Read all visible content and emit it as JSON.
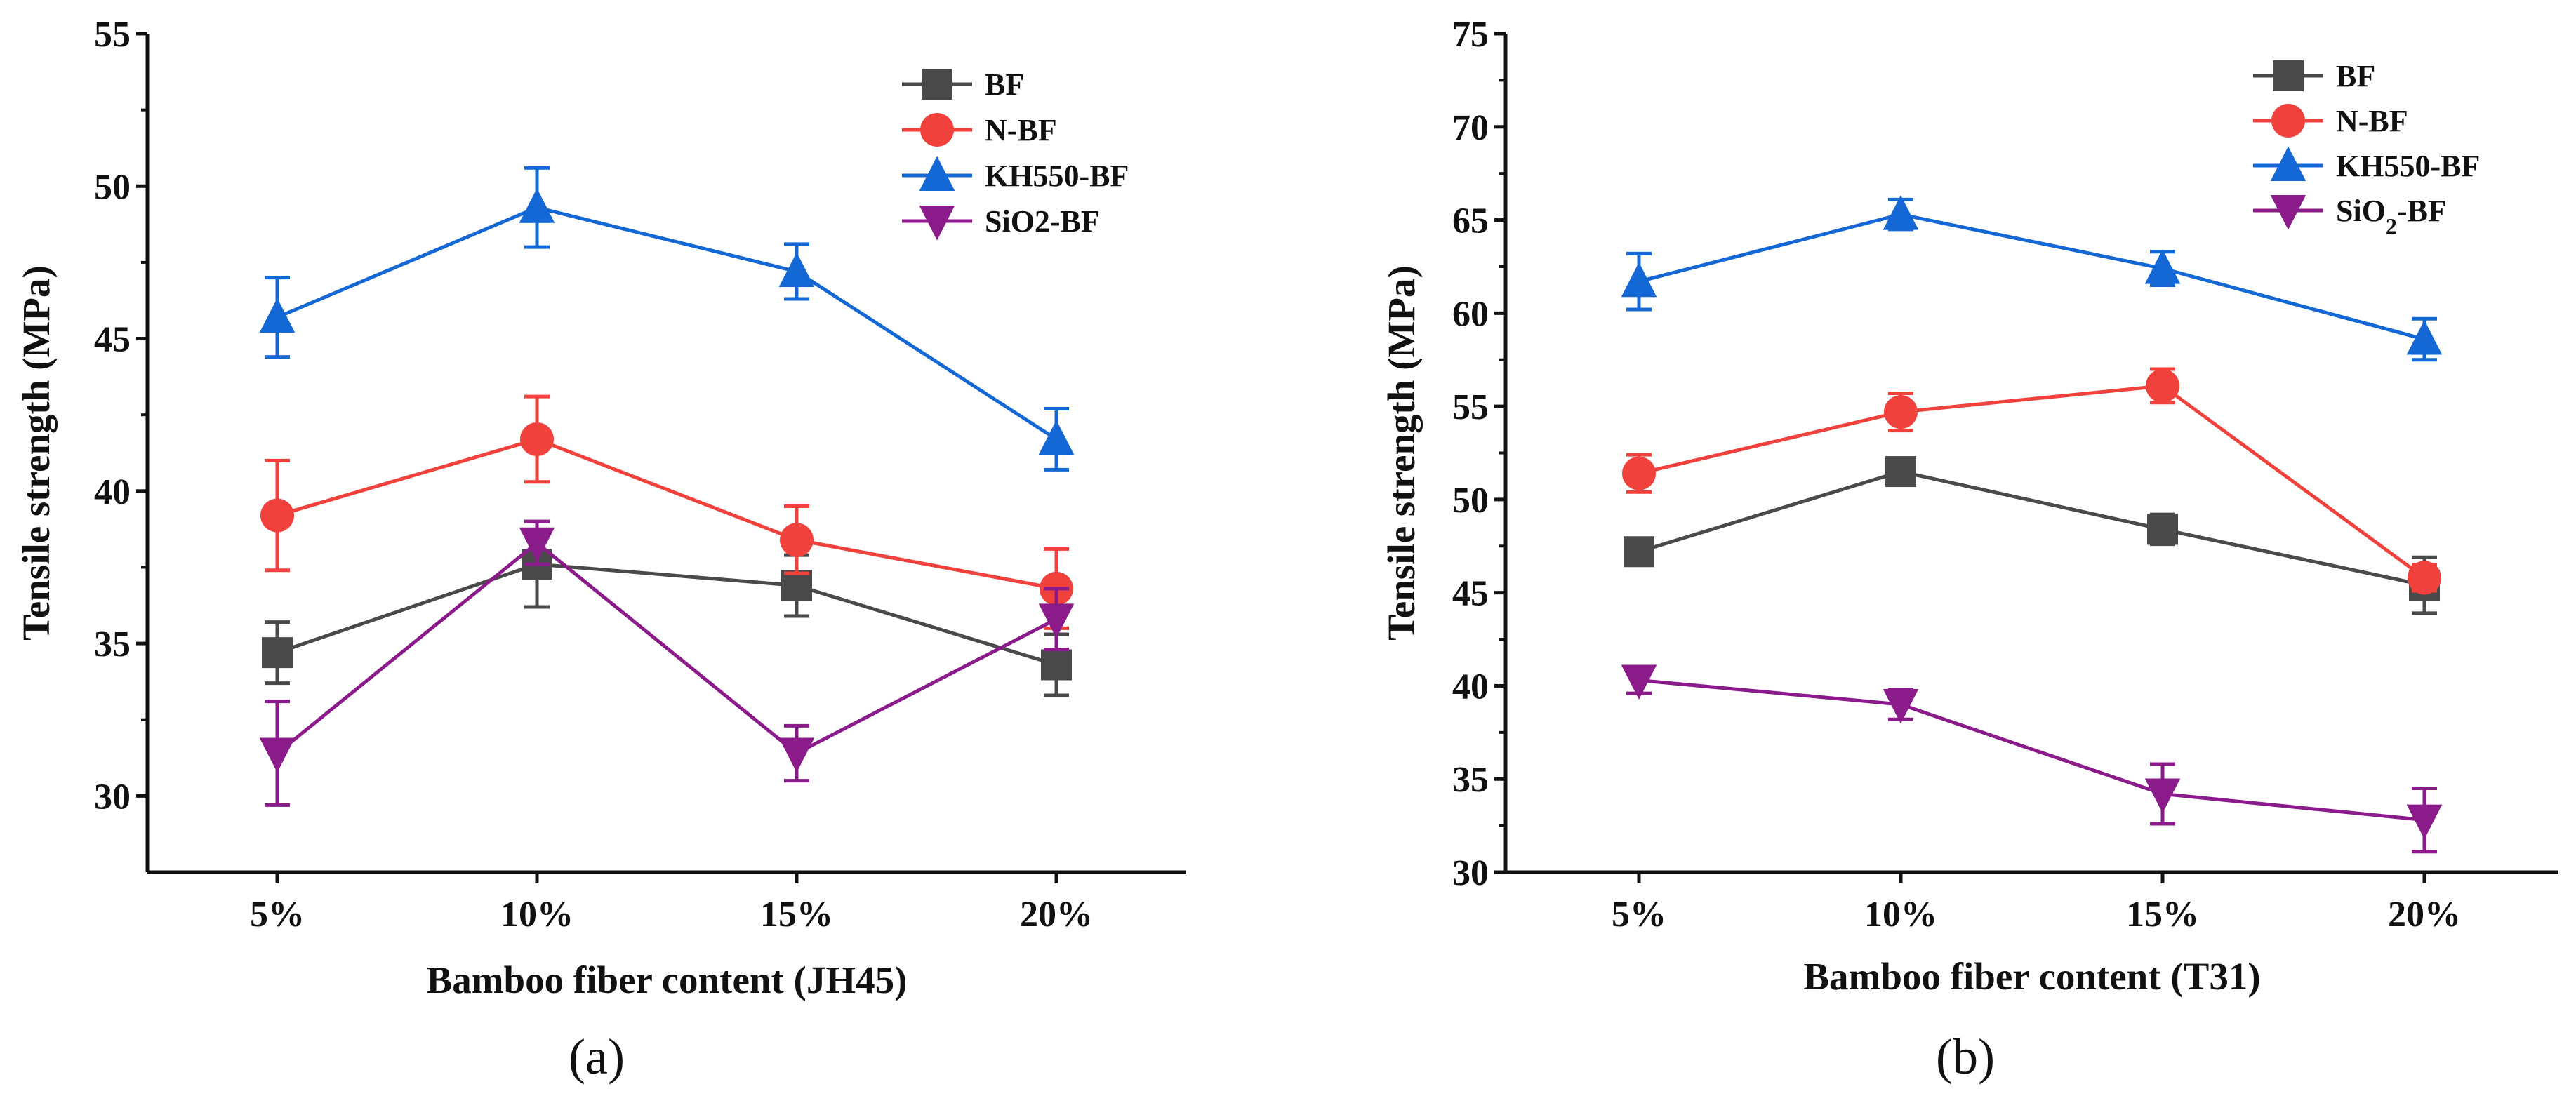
{
  "chart_data": [
    {
      "type": "line",
      "panel_label": "(a)",
      "xlabel": "Bamboo fiber content (JH45)",
      "ylabel": "Tensile strength (MPa)",
      "categories": [
        "5%",
        "10%",
        "15%",
        "20%"
      ],
      "ylim": [
        27.5,
        55
      ],
      "yticks": [
        30,
        35,
        40,
        45,
        50,
        55
      ],
      "legend_position": "top-right",
      "grid": false,
      "series": [
        {
          "name": "BF",
          "color": "#4a4a4a",
          "marker": "square",
          "values": [
            34.7,
            37.6,
            36.9,
            34.3
          ],
          "errors": [
            1.0,
            1.4,
            1.0,
            1.0
          ]
        },
        {
          "name": "N-BF",
          "color": "#f0413c",
          "marker": "circle",
          "values": [
            39.2,
            41.7,
            38.4,
            36.8
          ],
          "errors": [
            1.8,
            1.4,
            1.1,
            1.3
          ]
        },
        {
          "name": "KH550-BF",
          "color": "#1468d6",
          "marker": "triangle-up",
          "values": [
            45.7,
            49.3,
            47.2,
            41.7
          ],
          "errors": [
            1.3,
            1.3,
            0.9,
            1.0
          ]
        },
        {
          "name": "SiO2-BF",
          "color": "#8b1a8b",
          "marker": "triangle-down",
          "values": [
            31.4,
            38.3,
            31.4,
            35.8
          ],
          "errors": [
            1.7,
            0.7,
            0.9,
            1.0
          ]
        }
      ]
    },
    {
      "type": "line",
      "panel_label": "(b)",
      "xlabel": "Bamboo fiber content (T31)",
      "ylabel": "Tensile strength (MPa)",
      "categories": [
        "5%",
        "10%",
        "15%",
        "20%"
      ],
      "ylim": [
        30,
        75
      ],
      "yticks": [
        30,
        35,
        40,
        45,
        50,
        55,
        60,
        65,
        70,
        75
      ],
      "legend_position": "top-right",
      "grid": false,
      "series": [
        {
          "name": "BF",
          "color": "#4a4a4a",
          "marker": "square",
          "values": [
            47.2,
            51.5,
            48.4,
            45.4
          ],
          "errors": [
            0.4,
            0.7,
            0.8,
            1.5
          ]
        },
        {
          "name": "N-BF",
          "color": "#f0413c",
          "marker": "circle",
          "values": [
            51.4,
            54.7,
            56.1,
            45.8
          ],
          "errors": [
            1.0,
            1.0,
            0.9,
            0.7
          ]
        },
        {
          "name": "KH550-BF",
          "color": "#1468d6",
          "marker": "triangle-up",
          "values": [
            61.7,
            65.3,
            62.4,
            58.6
          ],
          "errors": [
            1.5,
            0.8,
            0.9,
            1.1
          ]
        },
        {
          "name": "SiO₂-BF",
          "color": "#8b1a8b",
          "marker": "triangle-down",
          "values": [
            40.3,
            39.0,
            34.2,
            32.8
          ],
          "errors": [
            0.7,
            0.8,
            1.6,
            1.7
          ]
        }
      ]
    }
  ]
}
